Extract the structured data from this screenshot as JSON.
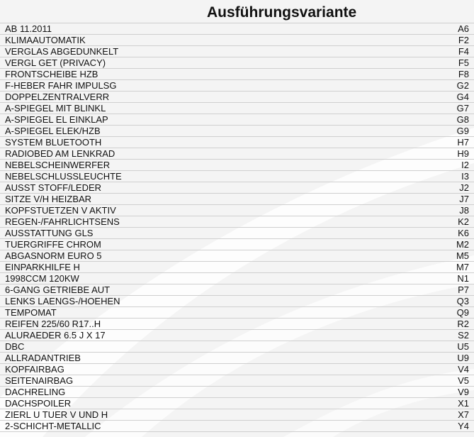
{
  "title": "Ausführungsvariante",
  "rows": [
    {
      "label": "AB 11.2011",
      "code": "A6"
    },
    {
      "label": "KLIMAAUTOMATIK",
      "code": "F2"
    },
    {
      "label": "VERGLAS ABGEDUNKELT",
      "code": "F4"
    },
    {
      "label": "VERGL GET (PRIVACY)",
      "code": "F5"
    },
    {
      "label": "FRONTSCHEIBE HZB",
      "code": "F8"
    },
    {
      "label": "F-HEBER FAHR IMPULSG",
      "code": "G2"
    },
    {
      "label": "DOPPELZENTRALVERR",
      "code": "G4"
    },
    {
      "label": "A-SPIEGEL MIT BLINKL",
      "code": "G7"
    },
    {
      "label": "A-SPIEGEL EL EINKLAP",
      "code": "G8"
    },
    {
      "label": "A-SPIEGEL ELEK/HZB",
      "code": "G9"
    },
    {
      "label": "SYSTEM BLUETOOTH",
      "code": "H7"
    },
    {
      "label": "RADIOBED AM LENKRAD",
      "code": "H9"
    },
    {
      "label": "NEBELSCHEINWERFER",
      "code": "I2"
    },
    {
      "label": "NEBELSCHLUSSLEUCHTE",
      "code": "I3"
    },
    {
      "label": "AUSST STOFF/LEDER",
      "code": "J2"
    },
    {
      "label": "SITZE V/H HEIZBAR",
      "code": "J7"
    },
    {
      "label": "KOPFSTUETZEN V AKTIV",
      "code": "J8"
    },
    {
      "label": "REGEN-/FAHRLICHTSENS",
      "code": "K2"
    },
    {
      "label": "AUSSTATTUNG GLS",
      "code": "K6"
    },
    {
      "label": "TUERGRIFFE CHROM",
      "code": "M2"
    },
    {
      "label": "ABGASNORM EURO 5",
      "code": "M5"
    },
    {
      "label": "EINPARKHILFE H",
      "code": "M7"
    },
    {
      "label": "1998CCM 120KW",
      "code": "N1"
    },
    {
      "label": "6-GANG GETRIEBE AUT",
      "code": "P7"
    },
    {
      "label": "LENKS LAENGS-/HOEHEN",
      "code": "Q3"
    },
    {
      "label": "TEMPOMAT",
      "code": "Q9"
    },
    {
      "label": "REIFEN 225/60 R17..H",
      "code": "R2"
    },
    {
      "label": "ALURAEDER 6.5 J X 17",
      "code": "S2"
    },
    {
      "label": "DBC",
      "code": "U5"
    },
    {
      "label": "ALLRADANTRIEB",
      "code": "U9"
    },
    {
      "label": "KOPFAIRBAG",
      "code": "V4"
    },
    {
      "label": "SEITENAIRBAG",
      "code": "V5"
    },
    {
      "label": "DACHRELING",
      "code": "V9"
    },
    {
      "label": "DACHSPOILER",
      "code": "X1"
    },
    {
      "label": "ZIERL U TUER V UND H",
      "code": "X7"
    },
    {
      "label": "2-SCHICHT-METALLIC",
      "code": "Y4"
    }
  ]
}
